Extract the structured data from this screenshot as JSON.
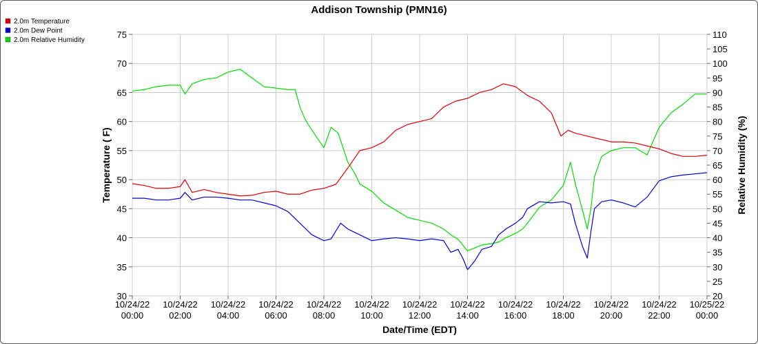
{
  "chart_data": {
    "type": "line",
    "title": "Addison Township (PMN16)",
    "xlabel": "Date/Time (EDT)",
    "ylabel": "Temperature ( F)",
    "y2label": "Relative Humidity (%)",
    "ylim": [
      30,
      75
    ],
    "y2lim": [
      20,
      110
    ],
    "y_ticks": [
      "30",
      "35",
      "40",
      "45",
      "50",
      "55",
      "60",
      "65",
      "70",
      "75"
    ],
    "y2_ticks": [
      "20",
      "25",
      "30",
      "35",
      "40",
      "45",
      "50",
      "55",
      "60",
      "65",
      "70",
      "75",
      "80",
      "85",
      "90",
      "95",
      "100",
      "105",
      "110"
    ],
    "x_ticks": [
      {
        "date": "10/24/22",
        "time": "00:00",
        "hour": 0
      },
      {
        "date": "10/24/22",
        "time": "02:00",
        "hour": 2
      },
      {
        "date": "10/24/22",
        "time": "04:00",
        "hour": 4
      },
      {
        "date": "10/24/22",
        "time": "06:00",
        "hour": 6
      },
      {
        "date": "10/24/22",
        "time": "08:00",
        "hour": 8
      },
      {
        "date": "10/24/22",
        "time": "10:00",
        "hour": 10
      },
      {
        "date": "10/24/22",
        "time": "12:00",
        "hour": 12
      },
      {
        "date": "10/24/22",
        "time": "14:00",
        "hour": 14
      },
      {
        "date": "10/24/22",
        "time": "16:00",
        "hour": 16
      },
      {
        "date": "10/24/22",
        "time": "18:00",
        "hour": 18
      },
      {
        "date": "10/24/22",
        "time": "20:00",
        "hour": 20
      },
      {
        "date": "10/24/22",
        "time": "22:00",
        "hour": 22
      },
      {
        "date": "10/25/22",
        "time": "00:00",
        "hour": 24
      }
    ],
    "xlim": [
      0,
      24
    ],
    "grid": true,
    "legend_position": "top-left",
    "series": [
      {
        "name": "2.0m Temperature",
        "color": "#dd0000",
        "axis": "left",
        "x": [
          0,
          0.5,
          1,
          1.5,
          2,
          2.2,
          2.5,
          3,
          3.5,
          4,
          4.5,
          5,
          5.5,
          6,
          6.5,
          7,
          7.5,
          8,
          8.5,
          9,
          9.5,
          10,
          10.5,
          11,
          11.5,
          12,
          12.5,
          13,
          13.5,
          14,
          14.5,
          15,
          15.5,
          16,
          16.5,
          17,
          17.5,
          17.9,
          18.2,
          18.5,
          19,
          19.5,
          20,
          20.5,
          21,
          21.5,
          22,
          22.5,
          23,
          23.5,
          24
        ],
        "values": [
          49.3,
          49,
          48.5,
          48.5,
          48.8,
          50,
          47.8,
          48.3,
          47.8,
          47.5,
          47.2,
          47.3,
          47.8,
          48,
          47.5,
          47.5,
          48.2,
          48.5,
          49.2,
          52,
          55,
          55.5,
          56.5,
          58.5,
          59.5,
          60,
          60.5,
          62.5,
          63.5,
          64,
          65,
          65.5,
          66.5,
          66,
          64.5,
          63.5,
          61.5,
          57.5,
          58.5,
          58,
          57.5,
          57,
          56.5,
          56.5,
          56.3,
          55.8,
          55.3,
          54.5,
          54,
          54,
          54.2
        ]
      },
      {
        "name": "2.0m Dew Point",
        "color": "#0000dd",
        "axis": "left",
        "x": [
          0,
          0.5,
          1,
          1.5,
          2,
          2.2,
          2.5,
          3,
          3.5,
          4,
          4.5,
          5,
          5.5,
          6,
          6.5,
          7,
          7.5,
          8,
          8.3,
          8.7,
          9,
          9.5,
          10,
          10.5,
          11,
          11.5,
          12,
          12.5,
          13,
          13.3,
          13.6,
          13.8,
          14,
          14.3,
          14.6,
          15,
          15.3,
          15.6,
          16,
          16.3,
          16.5,
          17,
          17.5,
          18,
          18.3,
          18.5,
          18.8,
          19,
          19.15,
          19.3,
          19.6,
          20,
          20.5,
          21,
          21.5,
          22,
          22.5,
          23,
          23.5,
          24
        ],
        "values": [
          46.8,
          46.8,
          46.5,
          46.5,
          46.8,
          47.8,
          46.5,
          47,
          47,
          46.8,
          46.5,
          46.5,
          46,
          45.5,
          44.5,
          42.5,
          40.5,
          39.5,
          39.8,
          42.5,
          41.5,
          40.5,
          39.5,
          39.8,
          40,
          39.8,
          39.5,
          39.8,
          39.5,
          37.5,
          38,
          36.5,
          34.5,
          36,
          38,
          38.5,
          40.5,
          41.5,
          42.5,
          43.5,
          45,
          46.2,
          46,
          46.2,
          45.8,
          42.5,
          38.5,
          36.5,
          41,
          45,
          46.2,
          46.5,
          46,
          45.3,
          47,
          49.8,
          50.5,
          50.8,
          51,
          51.2
        ]
      },
      {
        "name": "2.0m Relative Humidity",
        "color": "#00dd00",
        "axis": "right",
        "x": [
          0,
          0.5,
          1,
          1.5,
          2,
          2.2,
          2.5,
          3,
          3.5,
          4,
          4.5,
          5,
          5.5,
          6,
          6.5,
          6.8,
          7,
          7.2,
          7.5,
          8,
          8.3,
          8.6,
          9,
          9.3,
          9.5,
          10,
          10.5,
          11,
          11.5,
          12,
          12.5,
          13,
          13.3,
          13.6,
          13.8,
          14,
          14.3,
          14.6,
          15,
          15.3,
          15.6,
          16,
          16.3,
          16.5,
          17,
          17.5,
          18,
          18.3,
          18.5,
          18.8,
          19,
          19.15,
          19.3,
          19.6,
          20,
          20.5,
          21,
          21.5,
          22,
          22.5,
          23,
          23.5,
          24
        ],
        "values": [
          90.5,
          91,
          92,
          92.5,
          92.5,
          89.5,
          93,
          94.5,
          95,
          97,
          98,
          95,
          92,
          91.5,
          91,
          91,
          85,
          81,
          77,
          71,
          78,
          76,
          66,
          62,
          58.5,
          56,
          52,
          49.5,
          47,
          46,
          45,
          43,
          41,
          39.5,
          37.5,
          35.5,
          36.5,
          37.5,
          38,
          38.5,
          40,
          41.5,
          43,
          45,
          50.5,
          53,
          58,
          66,
          58.5,
          49.5,
          43,
          50,
          61,
          68,
          70,
          71,
          71,
          68.5,
          78,
          83,
          86,
          89.5,
          89.5
        ]
      }
    ]
  }
}
